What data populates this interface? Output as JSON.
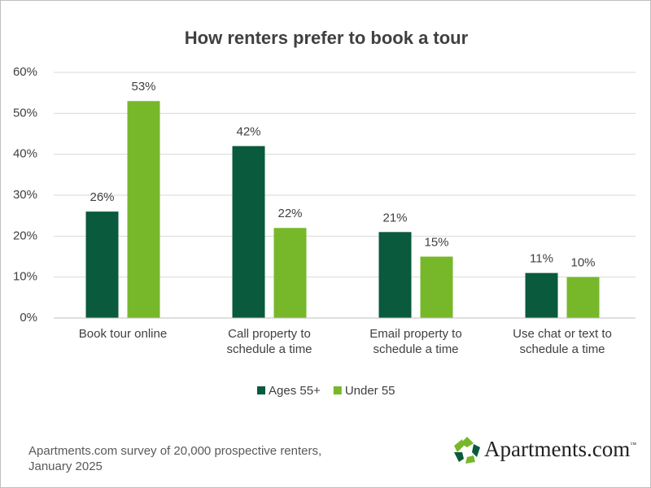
{
  "chart_data": {
    "type": "bar",
    "title": "How renters prefer to book a tour",
    "categories": [
      "Book tour online",
      "Call property to schedule a time",
      "Email property to schedule a time",
      "Use chat or text to schedule a time"
    ],
    "series": [
      {
        "name": "Ages 55+",
        "color": "#0a5a3d",
        "values": [
          26,
          42,
          21,
          11
        ],
        "value_labels": [
          "26%",
          "42%",
          "21%",
          "11%"
        ]
      },
      {
        "name": "Under 55",
        "color": "#77b82a",
        "values": [
          53,
          22,
          15,
          10
        ],
        "value_labels": [
          "53%",
          "22%",
          "15%",
          "10%"
        ]
      }
    ],
    "ylim": [
      0,
      60
    ],
    "yticks": [
      {
        "value": 0,
        "label": "0%"
      },
      {
        "value": 10,
        "label": "10%"
      },
      {
        "value": 20,
        "label": "20%"
      },
      {
        "value": 30,
        "label": "30%"
      },
      {
        "value": 40,
        "label": "40%"
      },
      {
        "value": 50,
        "label": "50%"
      },
      {
        "value": 60,
        "label": "60%"
      }
    ],
    "grid": true,
    "legend": "bottom",
    "note": "Apartments.com survey of 20,000 prospective renters, January 2025",
    "logo": "Apartments.com",
    "logo_mark": "™"
  }
}
